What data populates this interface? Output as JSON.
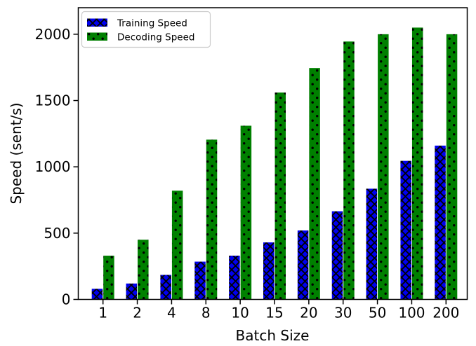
{
  "chart_data": {
    "type": "bar",
    "title": "",
    "xlabel": "Batch Size",
    "ylabel": "Speed (sent/s)",
    "categories": [
      "1",
      "2",
      "4",
      "8",
      "10",
      "15",
      "20",
      "30",
      "50",
      "100",
      "200"
    ],
    "series": [
      {
        "name": "Training Speed",
        "color": "#0000ee",
        "hatch": "xx",
        "values": [
          80,
          120,
          185,
          285,
          330,
          430,
          520,
          665,
          835,
          1045,
          1160
        ]
      },
      {
        "name": "Decoding Speed",
        "color": "#008000",
        "hatch": "..",
        "values": [
          330,
          450,
          820,
          1205,
          1310,
          1560,
          1745,
          1945,
          2000,
          2050,
          2000
        ]
      }
    ],
    "hatch_color": "#000000",
    "axis_color": "#000000",
    "yticks": [
      0,
      500,
      1000,
      1500,
      2000
    ],
    "ylim": [
      0,
      2200
    ],
    "grid": false,
    "legend": {
      "position": "upper-left",
      "border_color": "#cccccc",
      "background": "#ffffff"
    }
  }
}
